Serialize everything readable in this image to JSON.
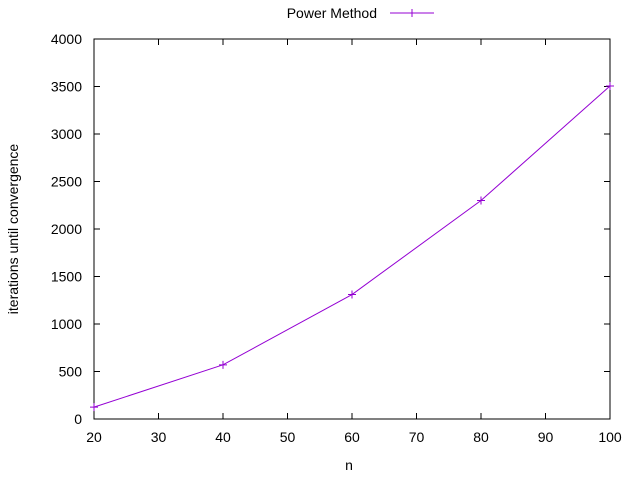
{
  "chart_data": {
    "type": "line",
    "xlabel": "n",
    "ylabel": "iterations until convergence",
    "xlim": [
      20,
      100
    ],
    "ylim": [
      0,
      4000
    ],
    "x_ticks": [
      "20",
      "30",
      "40",
      "50",
      "60",
      "70",
      "80",
      "90",
      "100"
    ],
    "y_ticks": [
      "0",
      "500",
      "1000",
      "1500",
      "2000",
      "2500",
      "3000",
      "3500",
      "4000"
    ],
    "grid": false,
    "legend_position": "top-center",
    "series": [
      {
        "name": "Power Method",
        "color": "#9400d3",
        "marker": "plus",
        "x": [
          20,
          40,
          60,
          80,
          100
        ],
        "y": [
          125,
          570,
          1310,
          2300,
          3505
        ]
      }
    ]
  }
}
